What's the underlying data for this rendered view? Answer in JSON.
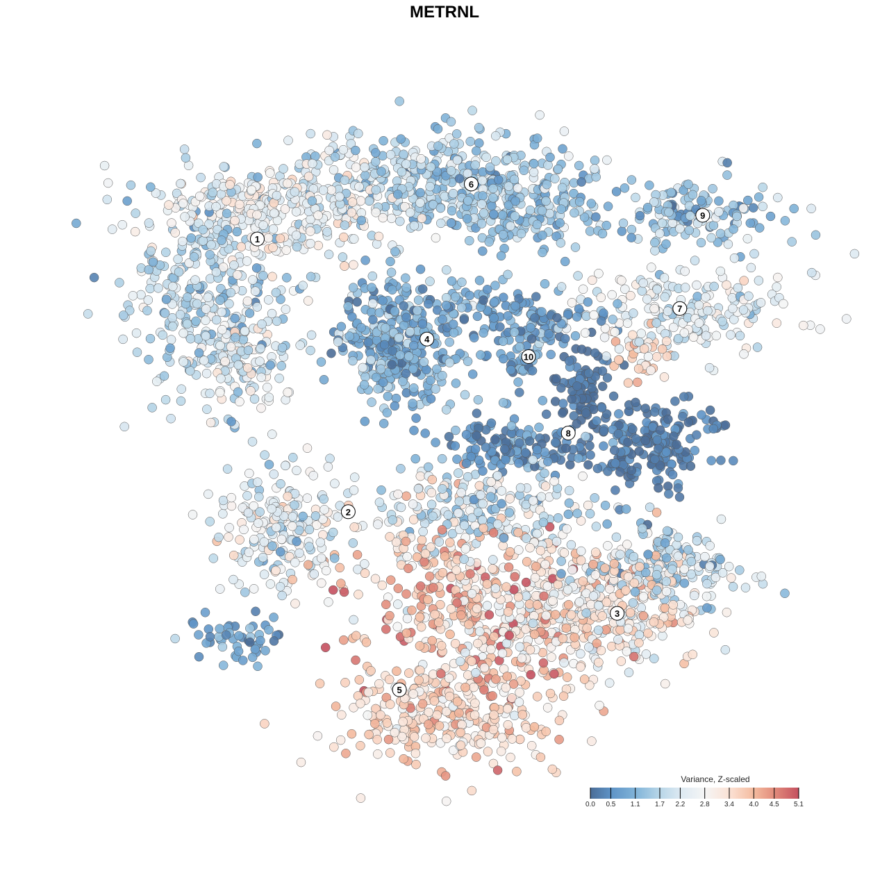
{
  "chart_data": {
    "type": "scatter",
    "title": "METRNL",
    "xlabel": "",
    "ylabel": "",
    "xlim": [
      -42,
      44
    ],
    "ylim": [
      -42,
      42
    ],
    "grid": false,
    "seed": 1234,
    "blobs": [
      {
        "cluster": "1",
        "cx": -30.9,
        "cy": 20.0,
        "sx": 5.5,
        "sy": 6.4,
        "n": 330,
        "mean": 1.8,
        "sd": 0.6
      },
      {
        "cluster": "1",
        "cx": -20.0,
        "cy": 30.9,
        "sx": 8.2,
        "sy": 3.6,
        "n": 300,
        "mean": 2.6,
        "sd": 0.5
      },
      {
        "cluster": "1",
        "cx": -26.4,
        "cy": 10.9,
        "sx": 3.6,
        "sy": 3.6,
        "n": 110,
        "mean": 2.3,
        "sd": 0.5
      },
      {
        "cluster": "6",
        "cx": 0.0,
        "cy": 34.5,
        "sx": 9.1,
        "sy": 3.6,
        "n": 380,
        "mean": 1.6,
        "sd": 0.5
      },
      {
        "cluster": "6",
        "cx": 10.9,
        "cy": 30.9,
        "sx": 4.5,
        "sy": 2.7,
        "n": 140,
        "mean": 1.2,
        "sd": 0.5
      },
      {
        "cluster": "9",
        "cx": 32.7,
        "cy": 30.0,
        "sx": 5.5,
        "sy": 2.3,
        "n": 140,
        "mean": 1.4,
        "sd": 0.6
      },
      {
        "cluster": "7",
        "cx": 30.9,
        "cy": 17.3,
        "sx": 7.3,
        "sy": 3.2,
        "n": 200,
        "mean": 2.3,
        "sd": 0.5
      },
      {
        "cluster": "7",
        "cx": 25.5,
        "cy": 11.8,
        "sx": 1.8,
        "sy": 1.8,
        "n": 30,
        "mean": 3.6,
        "sd": 0.3
      },
      {
        "cluster": "4",
        "cx": -5.5,
        "cy": 13.6,
        "sx": 4.1,
        "sy": 4.5,
        "n": 340,
        "mean": 1.0,
        "sd": 0.5
      },
      {
        "cluster": "10",
        "cx": 10.9,
        "cy": 12.7,
        "sx": 2.7,
        "sy": 3.6,
        "n": 80,
        "mean": 0.8,
        "sd": 0.5
      },
      {
        "cluster": "10",
        "cx": 8.2,
        "cy": 17.3,
        "sx": 5.5,
        "sy": 1.4,
        "n": 80,
        "mean": 0.6,
        "sd": 0.4
      },
      {
        "cluster": "8",
        "cx": 18.2,
        "cy": 7.3,
        "sx": 1.8,
        "sy": 2.7,
        "n": 80,
        "mean": 0.1,
        "sd": 0.2
      },
      {
        "cluster": "8",
        "cx": 26.4,
        "cy": 0.0,
        "sx": 4.1,
        "sy": 2.7,
        "n": 200,
        "mean": 0.25,
        "sd": 0.3
      },
      {
        "cluster": "8",
        "cx": 9.1,
        "cy": 0.0,
        "sx": 5.5,
        "sy": 1.8,
        "n": 120,
        "mean": 0.5,
        "sd": 0.4
      },
      {
        "cluster": "2",
        "cx": -21.8,
        "cy": -10.9,
        "sx": 4.5,
        "sy": 4.5,
        "n": 200,
        "mean": 2.3,
        "sd": 0.6
      },
      {
        "cluster": "2",
        "cx": -27.3,
        "cy": -25.5,
        "sx": 3.2,
        "sy": 1.4,
        "n": 50,
        "mean": 0.8,
        "sd": 0.4
      },
      {
        "cluster": "3",
        "cx": 20.0,
        "cy": -21.8,
        "sx": 7.3,
        "sy": 4.5,
        "n": 340,
        "mean": 3.1,
        "sd": 0.6
      },
      {
        "cluster": "3",
        "cx": 28.2,
        "cy": -16.4,
        "sx": 5.5,
        "sy": 2.7,
        "n": 150,
        "mean": 1.9,
        "sd": 0.6
      },
      {
        "cluster": "5",
        "cx": 3.6,
        "cy": -20.9,
        "sx": 8.2,
        "sy": 6.4,
        "n": 400,
        "mean": 3.7,
        "sd": 0.8
      },
      {
        "cluster": "5",
        "cx": 0.0,
        "cy": -35.5,
        "sx": 7.3,
        "sy": 3.6,
        "n": 300,
        "mean": 3.5,
        "sd": 0.5
      },
      {
        "cluster": "5",
        "cx": 5.5,
        "cy": -8.2,
        "sx": 7.3,
        "sy": 2.7,
        "n": 200,
        "mean": 1.9,
        "sd": 0.7
      }
    ],
    "cluster_labels": [
      {
        "label": "1",
        "x": -24.5,
        "y": 26.9
      },
      {
        "label": "2",
        "x": -12.6,
        "y": -8.8
      },
      {
        "label": "3",
        "x": 22.6,
        "y": -22.1
      },
      {
        "label": "4",
        "x": -2.3,
        "y": 13.8
      },
      {
        "label": "5",
        "x": -5.9,
        "y": -32.1
      },
      {
        "label": "6",
        "x": 3.5,
        "y": 34.1
      },
      {
        "label": "7",
        "x": 30.8,
        "y": 17.8
      },
      {
        "label": "8",
        "x": 16.2,
        "y": 1.5
      },
      {
        "label": "9",
        "x": 33.8,
        "y": 30.0
      },
      {
        "label": "10",
        "x": 11.0,
        "y": 11.5
      }
    ],
    "legend": {
      "title": "Variance, Z-scaled",
      "placement": "bottom-right",
      "ticks": [
        "0.0",
        "0.5",
        "1.1",
        "1.7",
        "2.2",
        "2.8",
        "3.4",
        "4.0",
        "4.5",
        "5.1"
      ],
      "tick_values": [
        0.0,
        0.5,
        1.1,
        1.7,
        2.2,
        2.8,
        3.4,
        4.0,
        4.5,
        5.1
      ],
      "colors": [
        "#4b6d97",
        "#5e93c6",
        "#80b3d8",
        "#b8d6e8",
        "#dce9f2",
        "#f5f5f5",
        "#fbe2d5",
        "#f4bb9f",
        "#e28c7c",
        "#c4505f"
      ]
    }
  }
}
